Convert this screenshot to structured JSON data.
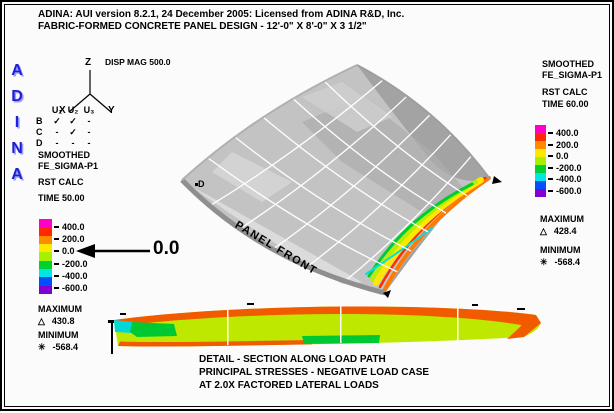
{
  "header": {
    "line1": "ADINA: AUI version 8.2.1, 24 December 2005: Licensed from ADINA R&D, Inc.",
    "line2": "FABRIC-FORMED CONCRETE PANEL DESIGN - 12'-0\" X 8'-0\" X 3 1/2\""
  },
  "logo": {
    "letters": [
      "A",
      "D",
      "I",
      "N",
      "A"
    ],
    "color": "#1f1fd4"
  },
  "triad": {
    "z": "Z",
    "x": "X",
    "y": "Y"
  },
  "model_info": {
    "disp_mag": "DISP MAG 500.0"
  },
  "bc_table": {
    "columns": [
      "U₁",
      "U₂",
      "U₃"
    ],
    "rows": [
      {
        "label": "B",
        "cells": [
          "✓",
          "✓",
          "-"
        ]
      },
      {
        "label": "C",
        "cells": [
          "-",
          "✓",
          "-"
        ]
      },
      {
        "label": "D",
        "cells": [
          "-",
          "-",
          "-"
        ]
      }
    ]
  },
  "left_result": {
    "smoothing": "SMOOTHED",
    "variable": "FE_SIGMA-P1",
    "calc": "RST CALC",
    "time": "TIME 50.00",
    "maximum_label": "MAXIMUM",
    "maximum_symbol": "△",
    "maximum_value": "430.8",
    "minimum_label": "MINIMUM",
    "minimum_symbol": "✳",
    "minimum_value": "-568.4"
  },
  "right_result": {
    "smoothing": "SMOOTHED",
    "variable": "FE_SIGMA-P1",
    "calc": "RST CALC",
    "time": "TIME 60.00",
    "maximum_label": "MAXIMUM",
    "maximum_symbol": "△",
    "maximum_value": "428.4",
    "minimum_label": "MINIMUM",
    "minimum_symbol": "✳",
    "minimum_value": "-568.4"
  },
  "scale": {
    "tick_labels": [
      "400.0",
      "200.0",
      "0.0",
      "-200.0",
      "-400.0",
      "-600.0"
    ],
    "colors": [
      "#ff00c8",
      "#ff2800",
      "#ff8c00",
      "#ffe800",
      "#a6f000",
      "#00d22d",
      "#00e6e6",
      "#0050ff",
      "#8200d2"
    ]
  },
  "annotation": {
    "value": "0.0"
  },
  "model": {
    "front_label": "PANEL FRONT",
    "point_label": "D"
  },
  "caption": {
    "line1": "DETAIL - SECTION ALONG LOAD PATH",
    "line2": "PRINCIPAL STRESSES - NEGATIVE LOAD CASE",
    "line3": "AT 2.0X FACTORED LATERAL LOADS"
  }
}
